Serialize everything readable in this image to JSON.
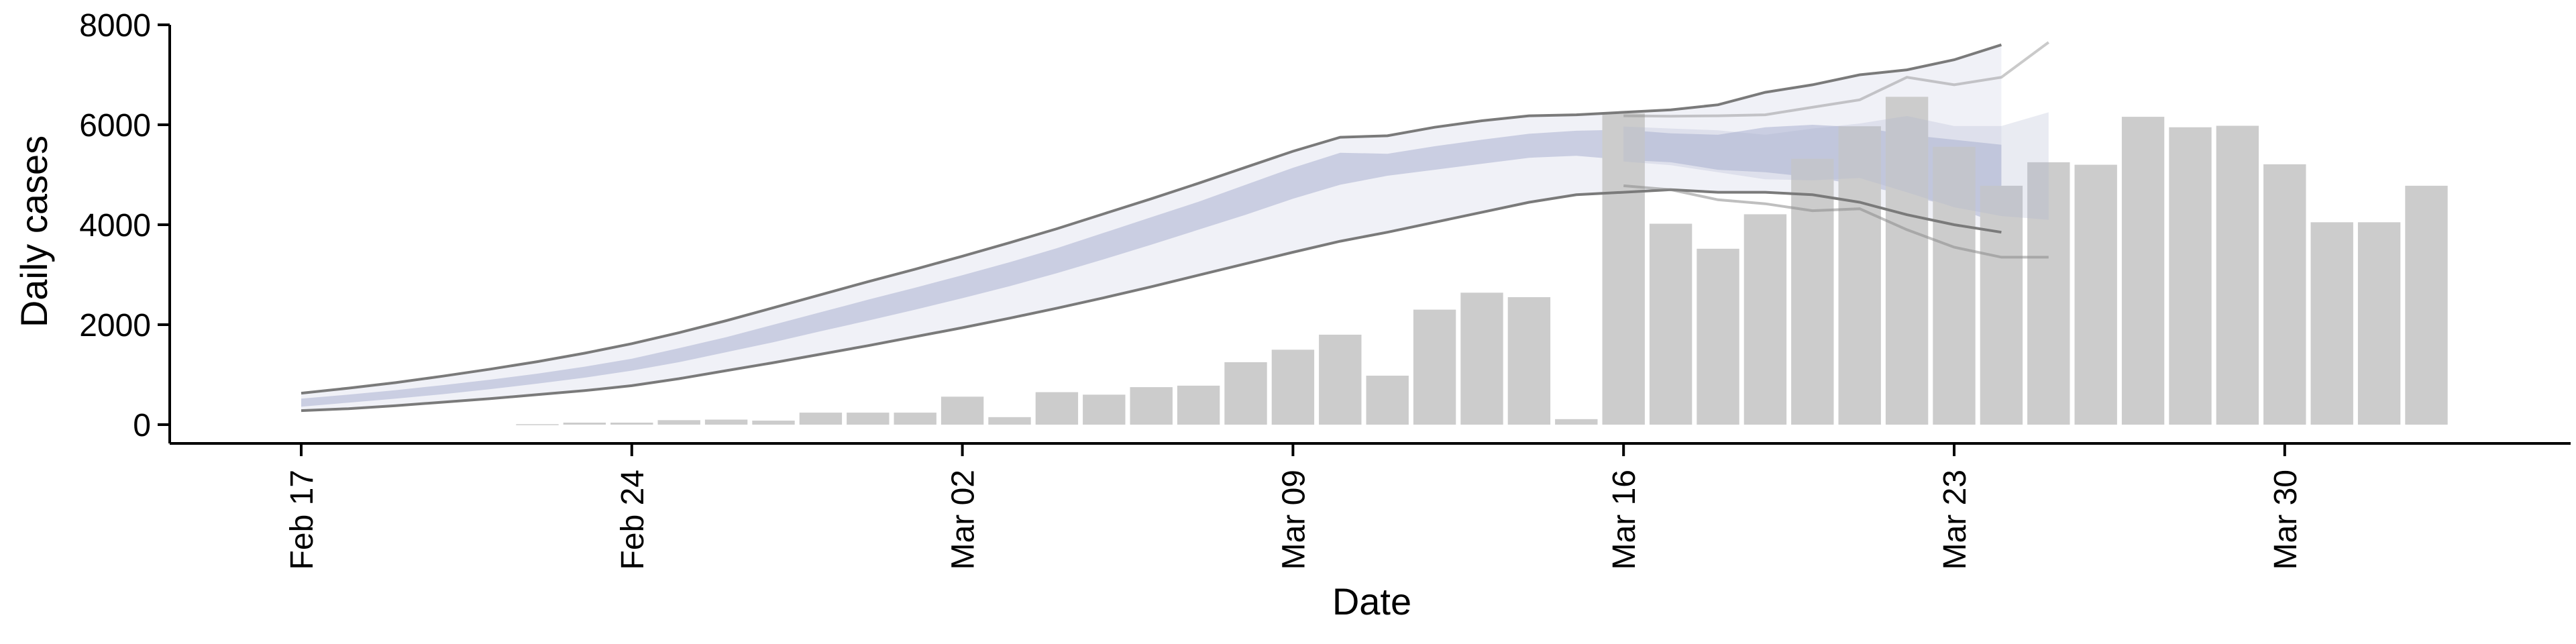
{
  "chart_data": {
    "type": "bar",
    "xlabel": "Date",
    "ylabel": "Daily cases",
    "ylim": [
      0,
      8000
    ],
    "yticks": [
      0,
      2000,
      4000,
      6000,
      8000
    ],
    "ytick_labels": [
      "0",
      "2000",
      "4000",
      "6000",
      "8000"
    ],
    "xtick_labels": [
      {
        "day": 0,
        "label": "Feb 17"
      },
      {
        "day": 7,
        "label": "Feb 24"
      },
      {
        "day": 14,
        "label": "Mar 02"
      },
      {
        "day": 21,
        "label": "Mar 09"
      },
      {
        "day": 28,
        "label": "Mar 16"
      },
      {
        "day": 35,
        "label": "Mar 23"
      },
      {
        "day": 42,
        "label": "Mar 30"
      }
    ],
    "bars": {
      "days": [
        5,
        6,
        7,
        8,
        9,
        10,
        11,
        12,
        13,
        14,
        15,
        16,
        17,
        18,
        19,
        20,
        21,
        22,
        23,
        24,
        25,
        26,
        27,
        28,
        29,
        30,
        31,
        32,
        33,
        34,
        35,
        36,
        37,
        38,
        39,
        40,
        41,
        42,
        43,
        44,
        45
      ],
      "values": [
        10,
        40,
        40,
        90,
        100,
        80,
        240,
        240,
        240,
        560,
        150,
        650,
        600,
        750,
        780,
        1250,
        1500,
        1800,
        980,
        2300,
        2640,
        2550,
        110,
        6230,
        4020,
        3520,
        4210,
        5320,
        5970,
        6560,
        5560,
        4780,
        5250,
        5200,
        6160,
        5950,
        5980,
        5210,
        4050,
        4050,
        4780
      ],
      "color": "#cccccc"
    },
    "model_series": [
      {
        "days": [
          0,
          1,
          2,
          3,
          4,
          5,
          6,
          7,
          8,
          9,
          10,
          11,
          12,
          13,
          14,
          15,
          16,
          17,
          18,
          19,
          20,
          21,
          22,
          23,
          24,
          25,
          26,
          27,
          28,
          29,
          30,
          31,
          32,
          33,
          34,
          35,
          36
        ],
        "median": [
          440,
          520,
          600,
          700,
          800,
          920,
          1050,
          1200,
          1390,
          1600,
          1830,
          2060,
          2290,
          2520,
          2760,
          3010,
          3280,
          3580,
          3880,
          4180,
          4500,
          4830,
          5120,
          5200,
          5330,
          5460,
          5580,
          5630,
          5600,
          5540,
          5450,
          5500,
          5500,
          5400,
          5200,
          5000,
          4800
        ],
        "inner_lower": [
          360,
          440,
          520,
          610,
          710,
          820,
          940,
          1080,
          1250,
          1450,
          1650,
          1870,
          2080,
          2300,
          2530,
          2770,
          3030,
          3310,
          3600,
          3900,
          4200,
          4520,
          4800,
          4980,
          5100,
          5220,
          5340,
          5380,
          5300,
          5250,
          5100,
          5050,
          4950,
          4800,
          4600,
          4350,
          4000
        ],
        "inner_upper": [
          520,
          600,
          690,
          790,
          900,
          1020,
          1160,
          1320,
          1530,
          1750,
          2000,
          2250,
          2500,
          2740,
          2990,
          3250,
          3530,
          3840,
          4150,
          4460,
          4800,
          5140,
          5440,
          5420,
          5570,
          5700,
          5820,
          5880,
          5900,
          5830,
          5800,
          5950,
          6000,
          5950,
          5800,
          5700,
          5600
        ],
        "outer_lower": [
          280,
          320,
          380,
          450,
          520,
          600,
          680,
          780,
          920,
          1080,
          1240,
          1410,
          1580,
          1760,
          1940,
          2130,
          2330,
          2540,
          2760,
          2990,
          3220,
          3450,
          3670,
          3850,
          4050,
          4250,
          4450,
          4600,
          4650,
          4700,
          4650,
          4650,
          4600,
          4450,
          4200,
          4000,
          3850
        ],
        "outer_upper": [
          630,
          730,
          840,
          970,
          1110,
          1260,
          1430,
          1620,
          1840,
          2080,
          2340,
          2600,
          2860,
          3110,
          3370,
          3640,
          3920,
          4220,
          4520,
          4830,
          5150,
          5470,
          5750,
          5780,
          5950,
          6080,
          6180,
          6200,
          6250,
          6300,
          6400,
          6650,
          6800,
          7000,
          7100,
          7300,
          7600
        ],
        "lower_line": [
          280,
          320,
          380,
          450,
          520,
          600,
          680,
          780,
          920,
          1080,
          1240,
          1410,
          1580,
          1760,
          1940,
          2130,
          2330,
          2540,
          2760,
          2990,
          3220,
          3450,
          3670,
          3850,
          4050,
          4250,
          4450,
          4600,
          4650,
          4700,
          4650,
          4650,
          4600,
          4450,
          4200,
          4000,
          3850
        ],
        "upper_line": [
          630,
          730,
          840,
          970,
          1110,
          1260,
          1430,
          1620,
          1840,
          2080,
          2340,
          2600,
          2860,
          3110,
          3370,
          3640,
          3920,
          4220,
          4520,
          4830,
          5150,
          5470,
          5750,
          5780,
          5950,
          6080,
          6180,
          6200,
          6250,
          6300,
          6400,
          6650,
          6800,
          7000,
          7100,
          7300,
          7600
        ],
        "colors": {
          "outer_band": "#ebecf4",
          "inner_band": "#c5cadf",
          "line": "#7a7a7a"
        }
      }
    ],
    "forecast_overlay": {
      "days": [
        28,
        29,
        30,
        31,
        32,
        33,
        34,
        35,
        36,
        37
      ],
      "lower_line": [
        4780,
        4700,
        4500,
        4420,
        4280,
        4320,
        3900,
        3550,
        3350,
        3350
      ],
      "upper_line": [
        6180,
        6170,
        6180,
        6200,
        6350,
        6500,
        6950,
        6800,
        6950,
        7650
      ],
      "median": [
        5750,
        5680,
        5600,
        5400,
        5500,
        5550,
        5400,
        5150,
        5000,
        4850
      ]
    }
  }
}
